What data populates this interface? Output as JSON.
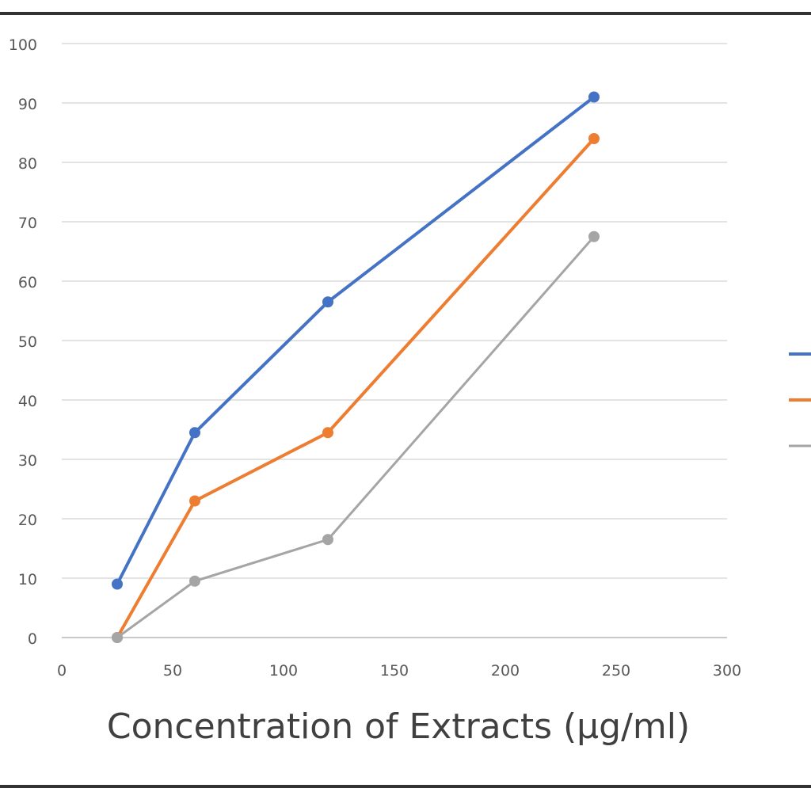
{
  "chart_data": {
    "type": "line",
    "title": "",
    "xlabel": "Concentration of Extracts (µg/ml)",
    "ylabel": "",
    "xlim": [
      0,
      300
    ],
    "ylim": [
      0,
      100
    ],
    "xticks": [
      0,
      50,
      100,
      150,
      200,
      250,
      300
    ],
    "yticks": [
      0,
      10,
      20,
      30,
      40,
      50,
      60,
      70,
      80,
      90,
      100
    ],
    "grid": true,
    "legend_position": "right",
    "series": [
      {
        "color": "#4472c4",
        "x": [
          25,
          60,
          120,
          240
        ],
        "y": [
          9,
          34.5,
          56.5,
          91
        ]
      },
      {
        "color": "#ed7d31",
        "x": [
          25,
          60,
          120,
          240
        ],
        "y": [
          0,
          23,
          34.5,
          84
        ]
      },
      {
        "color": "#a5a5a5",
        "x": [
          25,
          60,
          120,
          240
        ],
        "y": [
          0,
          9.5,
          16.5,
          67.5
        ]
      }
    ]
  }
}
